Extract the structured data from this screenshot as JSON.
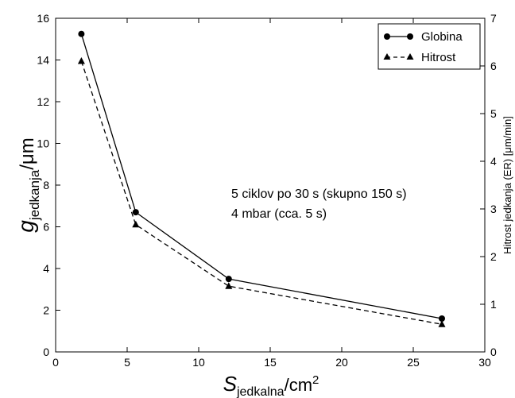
{
  "chart_data": {
    "type": "line",
    "xlabel": {
      "main": "S",
      "sub": "jedkalna",
      "suffix": "/cm",
      "sup": "2"
    },
    "ylabel_left": {
      "main": "g",
      "sub": "jedkanja",
      "suffix": "/μm"
    },
    "ylabel_right": "Hitrost jedkanja (ER) [μm/min]",
    "xlim": [
      0,
      30
    ],
    "ylim_left": [
      0,
      16
    ],
    "ylim_right": [
      0,
      7
    ],
    "x_ticks": [
      "0",
      "5",
      "10",
      "15",
      "20",
      "25",
      "30"
    ],
    "y_left_ticks": [
      "0",
      "2",
      "4",
      "6",
      "8",
      "10",
      "12",
      "14",
      "16"
    ],
    "y_right_ticks": [
      "0",
      "1",
      "2",
      "3",
      "4",
      "5",
      "6",
      "7"
    ],
    "grid": false,
    "legend_position": "top-right",
    "series": [
      {
        "name": "Globina",
        "axis": "left",
        "marker": "circle",
        "linestyle": "solid",
        "x": [
          1.8,
          5.6,
          12.1,
          27.0
        ],
        "y": [
          15.25,
          6.7,
          3.5,
          1.6
        ]
      },
      {
        "name": "Hitrost",
        "axis": "right",
        "marker": "triangle",
        "linestyle": "dashed",
        "x": [
          1.8,
          5.6,
          12.1,
          27.0
        ],
        "y": [
          6.1,
          2.67,
          1.38,
          0.58
        ]
      }
    ],
    "annotations": [
      "5 ciklov po 30 s (skupno 150 s)",
      "4 mbar (cca. 5 s)"
    ]
  }
}
